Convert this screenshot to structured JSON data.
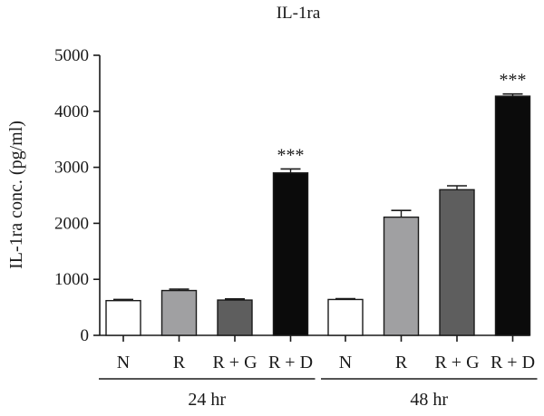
{
  "chart_data": {
    "type": "bar",
    "title": "IL-1ra",
    "ylabel": "IL-1ra conc. (pg/ml)",
    "xlabel": "",
    "ylim": [
      0,
      5000
    ],
    "yticks": [
      0,
      1000,
      2000,
      3000,
      4000,
      5000
    ],
    "grid": false,
    "groups": [
      {
        "label": "24 hr",
        "bars": [
          {
            "category": "N",
            "value": 620,
            "error": 20,
            "color": "#ffffff",
            "annotation": ""
          },
          {
            "category": "R",
            "value": 800,
            "error": 25,
            "color": "#a0a0a2",
            "annotation": ""
          },
          {
            "category": "R + G",
            "value": 630,
            "error": 20,
            "color": "#5e5e5e",
            "annotation": ""
          },
          {
            "category": "R + D",
            "value": 2900,
            "error": 70,
            "color": "#0b0b0b",
            "annotation": "***"
          }
        ]
      },
      {
        "label": "48 hr",
        "bars": [
          {
            "category": "N",
            "value": 640,
            "error": 15,
            "color": "#ffffff",
            "annotation": ""
          },
          {
            "category": "R",
            "value": 2110,
            "error": 120,
            "color": "#a0a0a2",
            "annotation": ""
          },
          {
            "category": "R + G",
            "value": 2600,
            "error": 70,
            "color": "#5e5e5e",
            "annotation": ""
          },
          {
            "category": "R + D",
            "value": 4270,
            "error": 40,
            "color": "#0b0b0b",
            "annotation": "***"
          }
        ]
      }
    ]
  }
}
